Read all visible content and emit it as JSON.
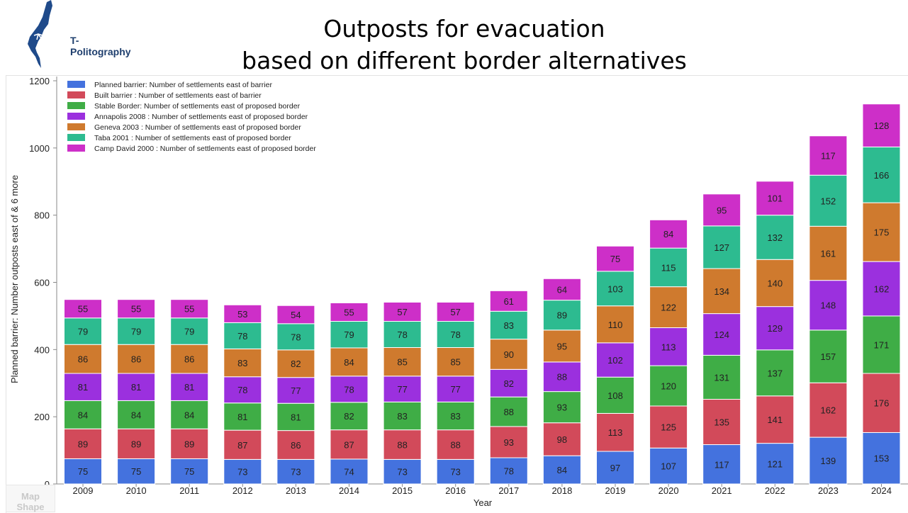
{
  "header": {
    "title_line1": "Outposts for evacuation",
    "title_line2": "based on different border alternatives",
    "logo_text": "T-Politography"
  },
  "side_tab": {
    "line1": "Map",
    "line2": "Shape"
  },
  "chart_data": {
    "type": "bar",
    "stacked": true,
    "title": "Outposts for evacuation based on different border alternatives",
    "xlabel": "Year",
    "ylabel": "Planned barrier: Number outposts east of & 6 more",
    "ylim": [
      0,
      1200
    ],
    "yticks": [
      0,
      200,
      400,
      600,
      800,
      1000,
      1200
    ],
    "legend_position": "top-left",
    "categories": [
      "2009",
      "2010",
      "2011",
      "2012",
      "2013",
      "2014",
      "2015",
      "2016",
      "2017",
      "2018",
      "2019",
      "2020",
      "2021",
      "2022",
      "2023",
      "2024"
    ],
    "series": [
      {
        "name": "Planned barrier: Number of settlements east of barrier",
        "color": "#4472de",
        "values": [
          75,
          75,
          75,
          73,
          73,
          74,
          73,
          73,
          78,
          84,
          97,
          107,
          117,
          121,
          139,
          153
        ]
      },
      {
        "name": "Built barrier : Number of settlements east of barrier",
        "color": "#d24a5a",
        "values": [
          89,
          89,
          89,
          87,
          86,
          87,
          88,
          88,
          93,
          98,
          113,
          125,
          135,
          141,
          162,
          176
        ]
      },
      {
        "name": "Stable Border: Number of settlements east of proposed border",
        "color": "#3fad46",
        "values": [
          84,
          84,
          84,
          81,
          81,
          82,
          83,
          83,
          88,
          93,
          108,
          120,
          131,
          137,
          157,
          171
        ]
      },
      {
        "name": "Annapolis 2008 : Number of settlements east of proposed border",
        "color": "#9b30de",
        "values": [
          81,
          81,
          81,
          78,
          77,
          78,
          77,
          77,
          82,
          88,
          102,
          113,
          124,
          129,
          148,
          162
        ]
      },
      {
        "name": "Geneva 2003 : Number of settlements east of proposed border",
        "color": "#cf7a2e",
        "values": [
          86,
          86,
          86,
          83,
          82,
          84,
          85,
          85,
          90,
          95,
          110,
          122,
          134,
          140,
          161,
          175
        ]
      },
      {
        "name": "Taba 2001 : Number of settlements east of proposed border",
        "color": "#2dbb90",
        "values": [
          79,
          79,
          79,
          78,
          78,
          79,
          78,
          78,
          83,
          89,
          103,
          115,
          127,
          132,
          152,
          166
        ]
      },
      {
        "name": "Camp David 2000 : Number of settlements east of proposed border",
        "color": "#cd2fc8",
        "values": [
          55,
          55,
          55,
          53,
          54,
          55,
          57,
          57,
          61,
          64,
          75,
          84,
          95,
          101,
          117,
          128
        ]
      }
    ]
  }
}
